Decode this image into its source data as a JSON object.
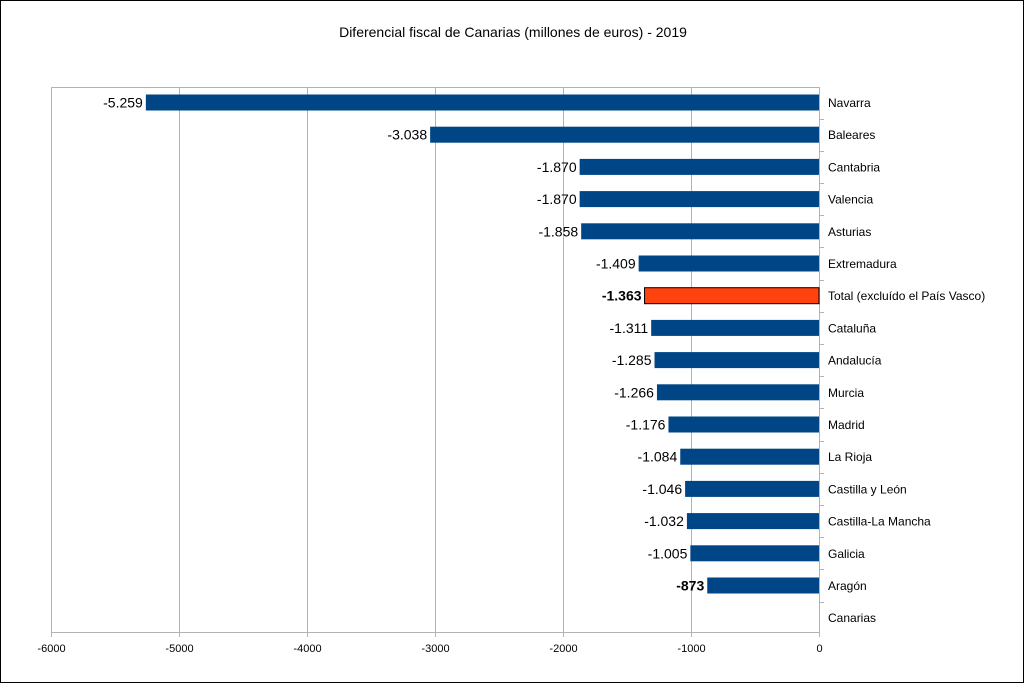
{
  "chart_data": {
    "type": "bar",
    "orientation": "horizontal",
    "title": "Diferencial fiscal de Canarias (millones de euros) - 2019",
    "xlabel": "",
    "ylabel": "",
    "xlim": [
      -6000,
      0
    ],
    "xticks": [
      -6000,
      -5000,
      -4000,
      -3000,
      -2000,
      -1000,
      0
    ],
    "xtick_labels": [
      "-6000",
      "-5000",
      "-4000",
      "-3000",
      "-2000",
      "-1000",
      "0"
    ],
    "grid": "vertical",
    "legend": "none",
    "colors": {
      "default": "#004586",
      "highlight": "#FF420E"
    },
    "categories": [
      "Navarra",
      "Baleares",
      "Cantabria",
      "Valencia",
      "Asturias",
      "Extremadura",
      "Total (excluído el País Vasco)",
      "Cataluña",
      "Andalucía",
      "Murcia",
      "Madrid",
      "La Rioja",
      "Castilla y León",
      "Castilla-La Mancha",
      "Galicia",
      "Aragón",
      "Canarias"
    ],
    "values": [
      -5259,
      -3038,
      -1870,
      -1870,
      -1858,
      -1409,
      -1363,
      -1311,
      -1285,
      -1266,
      -1176,
      -1084,
      -1046,
      -1032,
      -1005,
      -873,
      null
    ],
    "value_labels": [
      "-5.259",
      "-3.038",
      "-1.870",
      "-1.870",
      "-1.858",
      "-1.409",
      "-1.363",
      "-1.311",
      "-1.285",
      "-1.266",
      "-1.176",
      "-1.084",
      "-1.046",
      "-1.032",
      "-1.005",
      "-873",
      ""
    ],
    "highlight_categories": [
      "Total (excluído el País Vasco)"
    ],
    "bold_value_labels": [
      "Total (excluído el País Vasco)",
      "Aragón"
    ]
  }
}
